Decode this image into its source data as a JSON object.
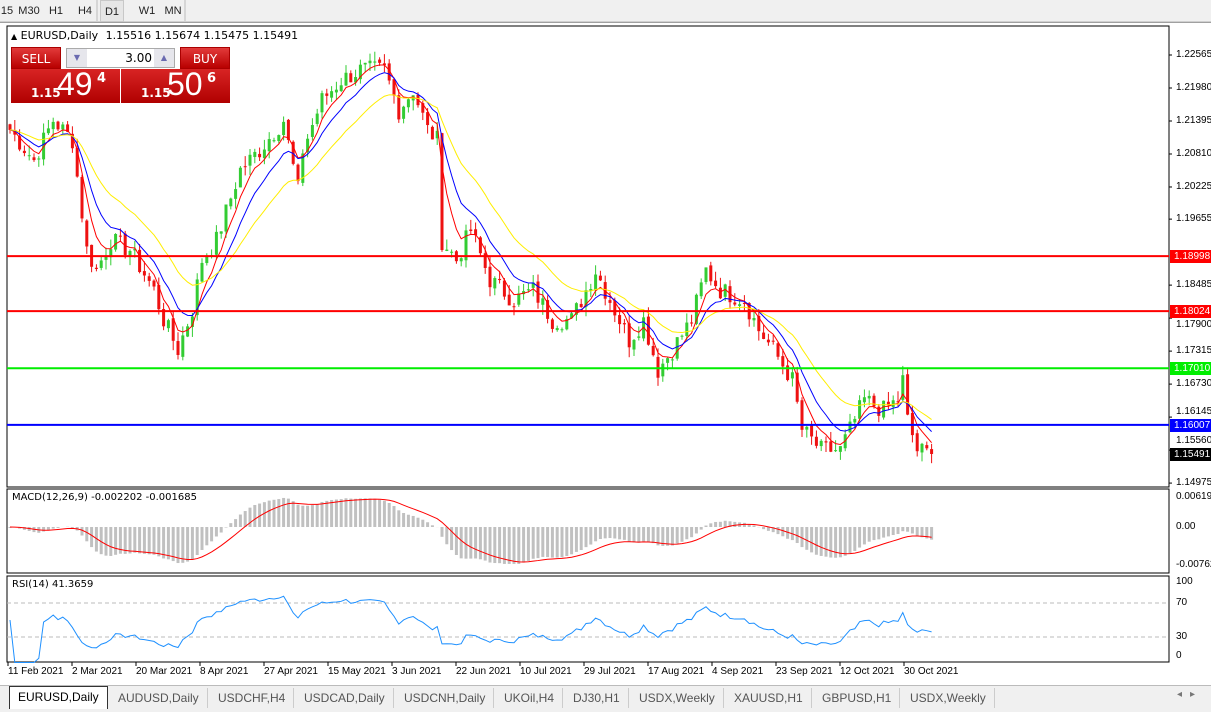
{
  "toolbar": {
    "timeframes": [
      "15",
      "M30",
      "H1",
      "H4",
      "D1",
      "W1",
      "MN"
    ],
    "selected": "D1"
  },
  "chart": {
    "title": "EURUSD,Daily",
    "ohlc": "1.15516 1.15674 1.15475 1.15491",
    "trade": {
      "sell_label": "SELL",
      "buy_label": "BUY",
      "lot": "3.00",
      "sell_prefix": "1.15",
      "sell_big": "49",
      "sell_sup": "4",
      "buy_prefix": "1.15",
      "buy_big": "50",
      "buy_sup": "6"
    },
    "price_axis": [
      "1.22565",
      "1.21980",
      "1.21395",
      "1.20810",
      "1.20225",
      "1.19655",
      "1.18485",
      "1.17900",
      "1.17315",
      "1.16730",
      "1.16145",
      "1.15560",
      "1.14975"
    ],
    "levels": [
      {
        "price": "1.18998",
        "color": "#ff0000"
      },
      {
        "price": "1.18024",
        "color": "#ff0000"
      },
      {
        "price": "1.17010",
        "color": "#00ee00"
      },
      {
        "price": "1.16007",
        "color": "#0000ff"
      }
    ],
    "current_price": "1.15491",
    "dates": [
      "11 Feb 2021",
      "2 Mar 2021",
      "20 Mar 2021",
      "8 Apr 2021",
      "27 Apr 2021",
      "15 May 2021",
      "3 Jun 2021",
      "22 Jun 2021",
      "10 Jul 2021",
      "29 Jul 2021",
      "17 Aug 2021",
      "4 Sep 2021",
      "23 Sep 2021",
      "12 Oct 2021",
      "30 Oct 2021"
    ],
    "colors": {
      "up": "#33cc33",
      "down": "#ee1111",
      "ma_fast": "#ff0000",
      "ma_mid": "#0000ff",
      "ma_slow": "#ffee00"
    }
  },
  "macd": {
    "title": "MACD(12,26,9) -0.002202 -0.001685",
    "axis": [
      "0.006193",
      "0.00",
      "-0.00762"
    ]
  },
  "rsi": {
    "title": "RSI(14) 41.3659",
    "axis": [
      "100",
      "70",
      "30",
      "0"
    ]
  },
  "chart_data": {
    "type": "candlestick",
    "symbol": "EURUSD",
    "timeframe": "Daily",
    "ylim": [
      1.1497,
      1.2285
    ],
    "approx_close_path": [
      [
        0,
        1.2124
      ],
      [
        5,
        1.207
      ],
      [
        9,
        1.2141
      ],
      [
        13,
        1.2106
      ],
      [
        16,
        1.1911
      ],
      [
        18,
        1.1875
      ],
      [
        21,
        1.1928
      ],
      [
        25,
        1.1911
      ],
      [
        30,
        1.184
      ],
      [
        32,
        1.1787
      ],
      [
        35,
        1.1734
      ],
      [
        38,
        1.1805
      ],
      [
        40,
        1.1893
      ],
      [
        43,
        1.1928
      ],
      [
        48,
        1.2053
      ],
      [
        52,
        1.2088
      ],
      [
        57,
        1.2141
      ],
      [
        60,
        1.2017
      ],
      [
        61,
        1.2088
      ],
      [
        65,
        1.2177
      ],
      [
        69,
        1.2212
      ],
      [
        73,
        1.223
      ],
      [
        78,
        1.223
      ],
      [
        81,
        1.2159
      ],
      [
        84,
        1.2195
      ],
      [
        87,
        1.2124
      ],
      [
        89,
        1.2106
      ],
      [
        90,
        1.1928
      ],
      [
        93,
        1.1893
      ],
      [
        96,
        1.1946
      ],
      [
        100,
        1.1858
      ],
      [
        105,
        1.1822
      ],
      [
        109,
        1.184
      ],
      [
        113,
        1.1787
      ],
      [
        117,
        1.1787
      ],
      [
        119,
        1.1822
      ],
      [
        122,
        1.1875
      ],
      [
        125,
        1.1822
      ],
      [
        129,
        1.1751
      ],
      [
        132,
        1.1787
      ],
      [
        135,
        1.1698
      ],
      [
        138,
        1.1734
      ],
      [
        142,
        1.1787
      ],
      [
        145,
        1.1875
      ],
      [
        148,
        1.184
      ],
      [
        153,
        1.1822
      ],
      [
        156,
        1.1769
      ],
      [
        159,
        1.1734
      ],
      [
        163,
        1.168
      ],
      [
        165,
        1.1592
      ],
      [
        169,
        1.1556
      ],
      [
        173,
        1.1556
      ],
      [
        175,
        1.1592
      ],
      [
        178,
        1.1645
      ],
      [
        182,
        1.1627
      ],
      [
        185,
        1.1645
      ],
      [
        186,
        1.168
      ],
      [
        187,
        1.1609
      ],
      [
        189,
        1.1556
      ],
      [
        192,
        1.15491
      ]
    ],
    "overlays": [
      "MA fast (red)",
      "MA medium (blue)",
      "MA slow (yellow)"
    ],
    "indicators": [
      "MACD(12,26,9)",
      "RSI(14)"
    ]
  },
  "tabs": [
    "EURUSD,Daily",
    "AUDUSD,Daily",
    "USDCHF,H4",
    "USDCAD,Daily",
    "USDCNH,Daily",
    "UKOil,H4",
    "DJ30,H1",
    "USDX,Weekly",
    "XAUUSD,H1",
    "GBPUSD,H1",
    "USDX,Weekly"
  ],
  "tab_nav": [
    "◂",
    "▸"
  ]
}
